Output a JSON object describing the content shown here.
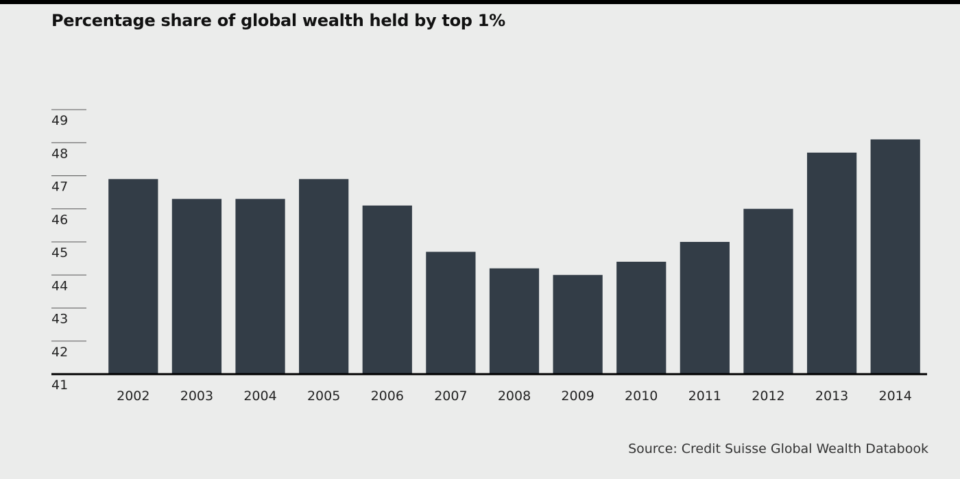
{
  "title": "Percentage share of global wealth held by top 1%",
  "source": "Source: Credit Suisse Global Wealth Databook",
  "colors": {
    "bar": "#333d47",
    "background": "#ebeceb",
    "axis": "#000000",
    "text": "#222222"
  },
  "chart_data": {
    "type": "bar",
    "title": "Percentage share of global wealth held by top 1%",
    "xlabel": "",
    "ylabel": "",
    "categories": [
      "2002",
      "2003",
      "2004",
      "2005",
      "2006",
      "2007",
      "2008",
      "2009",
      "2010",
      "2011",
      "2012",
      "2013",
      "2014"
    ],
    "values": [
      46.9,
      46.3,
      46.3,
      46.9,
      46.1,
      44.7,
      44.2,
      44.0,
      44.4,
      45.0,
      46.0,
      47.7,
      48.1
    ],
    "ylim": [
      41,
      49
    ],
    "yticks": [
      41,
      42,
      43,
      44,
      45,
      46,
      47,
      48,
      49
    ],
    "grid": false,
    "legend": "none"
  }
}
